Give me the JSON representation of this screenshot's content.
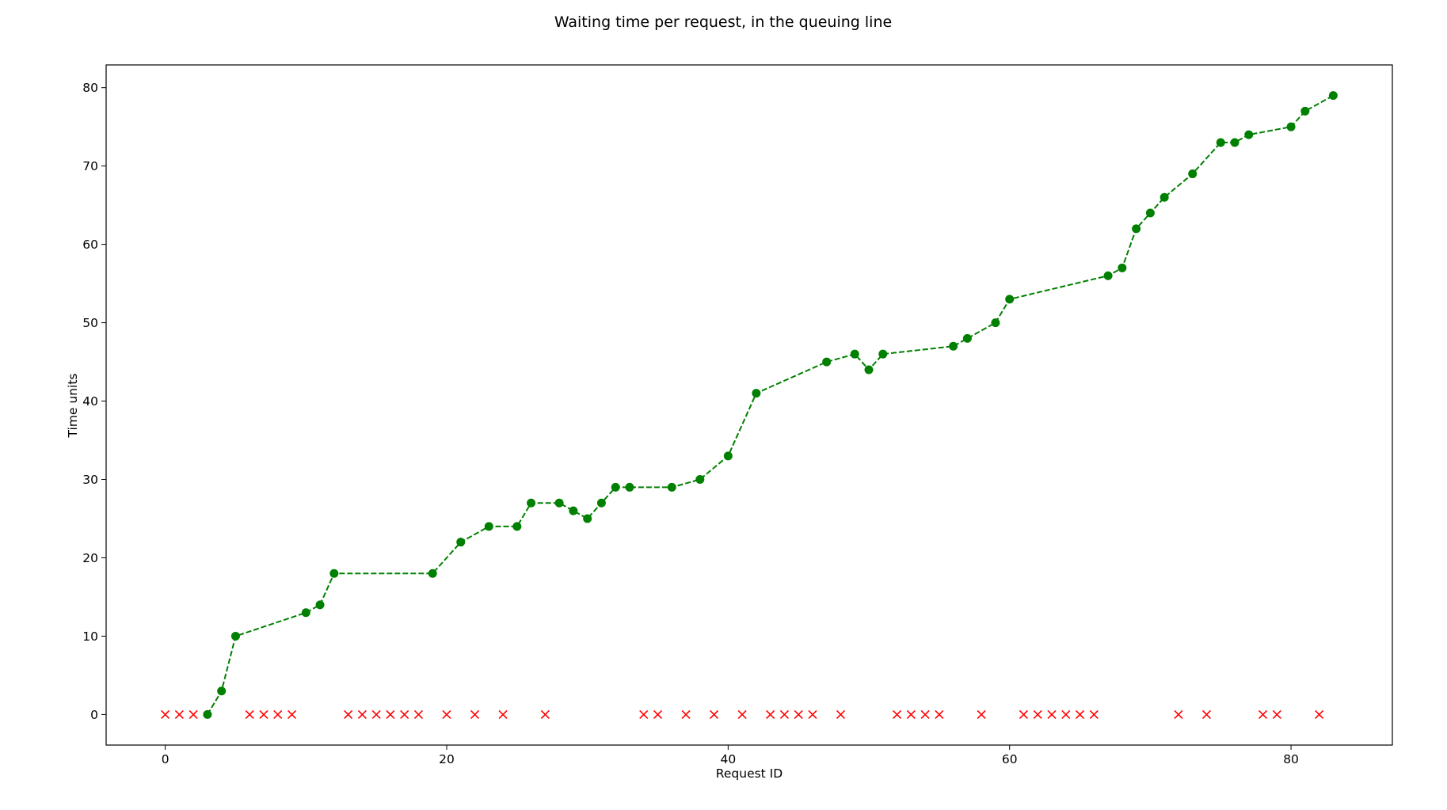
{
  "chart_data": {
    "type": "scatter",
    "title": "Waiting time per request, in the queuing line",
    "xlabel": "Request ID",
    "ylabel": "Time units",
    "xlim": [
      -4.2,
      87.2
    ],
    "ylim": [
      -3.9,
      82.9
    ],
    "xticks": [
      0,
      20,
      40,
      60,
      80
    ],
    "yticks": [
      0,
      10,
      20,
      30,
      40,
      50,
      60,
      70,
      80
    ],
    "grid": false,
    "colors": {
      "served": "#008000",
      "dropped": "#ff0000"
    },
    "series": [
      {
        "style": "green dashed line with filled circle markers",
        "x": [
          3,
          4,
          5,
          10,
          11,
          12,
          19,
          21,
          23,
          25,
          26,
          28,
          29,
          30,
          31,
          32,
          33,
          36,
          38,
          40,
          42,
          47,
          49,
          50,
          51,
          56,
          57,
          59,
          60,
          67,
          68,
          69,
          70,
          71,
          73,
          75,
          76,
          77,
          80,
          81,
          83
        ],
        "y": [
          0,
          3,
          10,
          13,
          14,
          18,
          18,
          22,
          24,
          24,
          27,
          27,
          26,
          25,
          27,
          29,
          29,
          29,
          30,
          33,
          41,
          45,
          46,
          44,
          46,
          47,
          48,
          50,
          53,
          56,
          57,
          62,
          64,
          66,
          69,
          73,
          73,
          74,
          75,
          77,
          79
        ]
      },
      {
        "style": "red x markers",
        "x": [
          0,
          1,
          2,
          6,
          7,
          8,
          9,
          13,
          14,
          15,
          16,
          17,
          18,
          20,
          22,
          24,
          27,
          34,
          35,
          37,
          39,
          41,
          43,
          44,
          45,
          46,
          48,
          52,
          53,
          54,
          55,
          58,
          61,
          62,
          63,
          64,
          65,
          66,
          72,
          74,
          78,
          79,
          82
        ],
        "y": [
          0,
          0,
          0,
          0,
          0,
          0,
          0,
          0,
          0,
          0,
          0,
          0,
          0,
          0,
          0,
          0,
          0,
          0,
          0,
          0,
          0,
          0,
          0,
          0,
          0,
          0,
          0,
          0,
          0,
          0,
          0,
          0,
          0,
          0,
          0,
          0,
          0,
          0,
          0,
          0,
          0,
          0,
          0
        ]
      }
    ]
  }
}
